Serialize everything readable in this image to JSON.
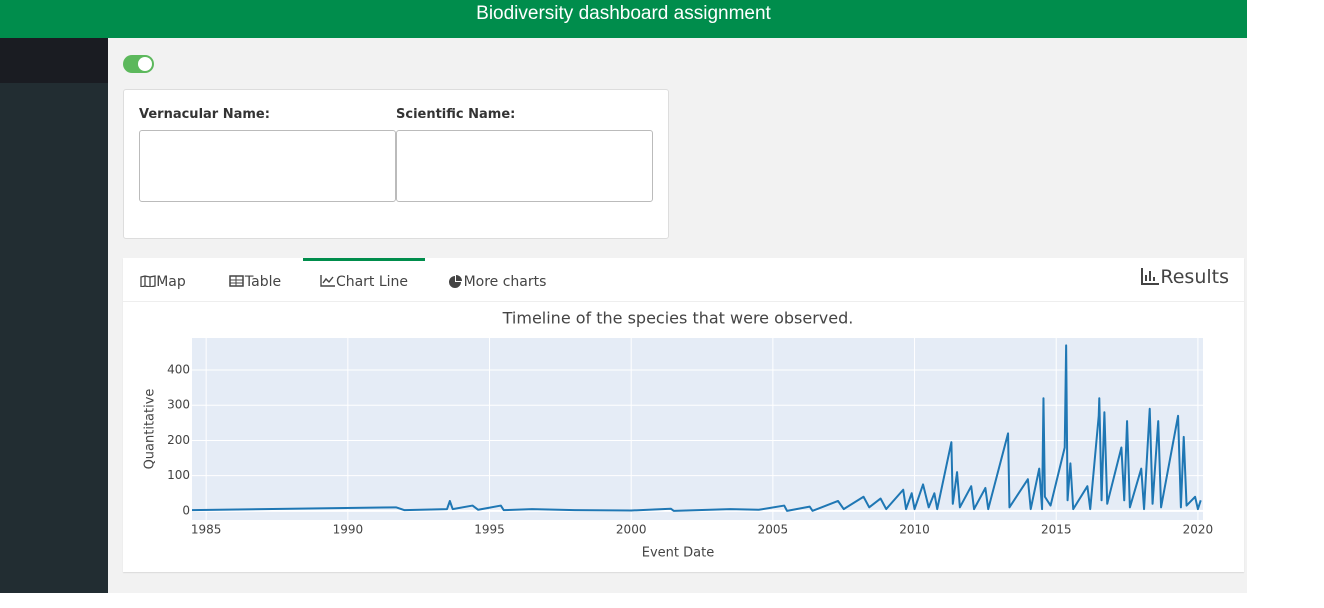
{
  "header": {
    "title": "Biodiversity dashboard assignment"
  },
  "form": {
    "vernacular_label": "Vernacular Name:",
    "scientific_label": "Scientific Name:"
  },
  "tabs": [
    "Map",
    "Table",
    "Chart Line",
    "More charts"
  ],
  "results": "Results",
  "chart_data": {
    "type": "line",
    "title": "Timeline of the species that were observed.",
    "xlabel": "Event Date",
    "ylabel": "Quantitative",
    "color": "#1f77b4",
    "grid": true,
    "xlim": [
      1984.5,
      2020.18
    ],
    "xticks": [
      1985,
      1990,
      1995,
      2000,
      2005,
      2010,
      2015,
      2020
    ],
    "ylim": [
      -26,
      491
    ],
    "yticks": [
      0,
      100,
      200,
      300,
      400
    ],
    "x": [
      1984.5,
      1991.7,
      1992,
      1993.5,
      1993.6,
      1993.7,
      1994.4,
      1994.6,
      1995.4,
      1995.5,
      1996.5,
      1998,
      2000,
      2001.4,
      2001.5,
      2003.5,
      2004.5,
      2005.4,
      2005.5,
      2006.3,
      2006.4,
      2007.3,
      2007.5,
      2008.2,
      2008.4,
      2008.8,
      2009,
      2009.6,
      2009.7,
      2009.9,
      2010,
      2010.3,
      2010.5,
      2010.7,
      2010.8,
      2011.3,
      2011.35,
      2011.5,
      2011.6,
      2012,
      2012.1,
      2012.5,
      2012.6,
      2013.3,
      2013.35,
      2014,
      2014.1,
      2014.4,
      2014.5,
      2014.55,
      2014.6,
      2014.8,
      2015.3,
      2015.35,
      2015.4,
      2015.5,
      2015.6,
      2016.1,
      2016.2,
      2016.5,
      2016.52,
      2016.6,
      2016.7,
      2016.8,
      2017.3,
      2017.4,
      2017.5,
      2017.6,
      2018,
      2018.1,
      2018.3,
      2018.4,
      2018.6,
      2018.7,
      2019.3,
      2019.4,
      2019.5,
      2019.6,
      2019.9,
      2020,
      2020.1
    ],
    "values": [
      2,
      10,
      2,
      5,
      28,
      5,
      15,
      3,
      15,
      2,
      5,
      2,
      1,
      6,
      0,
      5,
      3,
      15,
      0,
      12,
      0,
      28,
      5,
      40,
      10,
      35,
      5,
      60,
      5,
      50,
      5,
      75,
      10,
      50,
      5,
      195,
      20,
      110,
      10,
      70,
      5,
      65,
      5,
      220,
      10,
      90,
      5,
      120,
      5,
      320,
      40,
      15,
      180,
      470,
      30,
      135,
      5,
      70,
      5,
      270,
      320,
      30,
      280,
      20,
      180,
      30,
      255,
      10,
      120,
      5,
      290,
      20,
      255,
      10,
      270,
      10,
      210,
      15,
      40,
      5,
      30
    ]
  }
}
